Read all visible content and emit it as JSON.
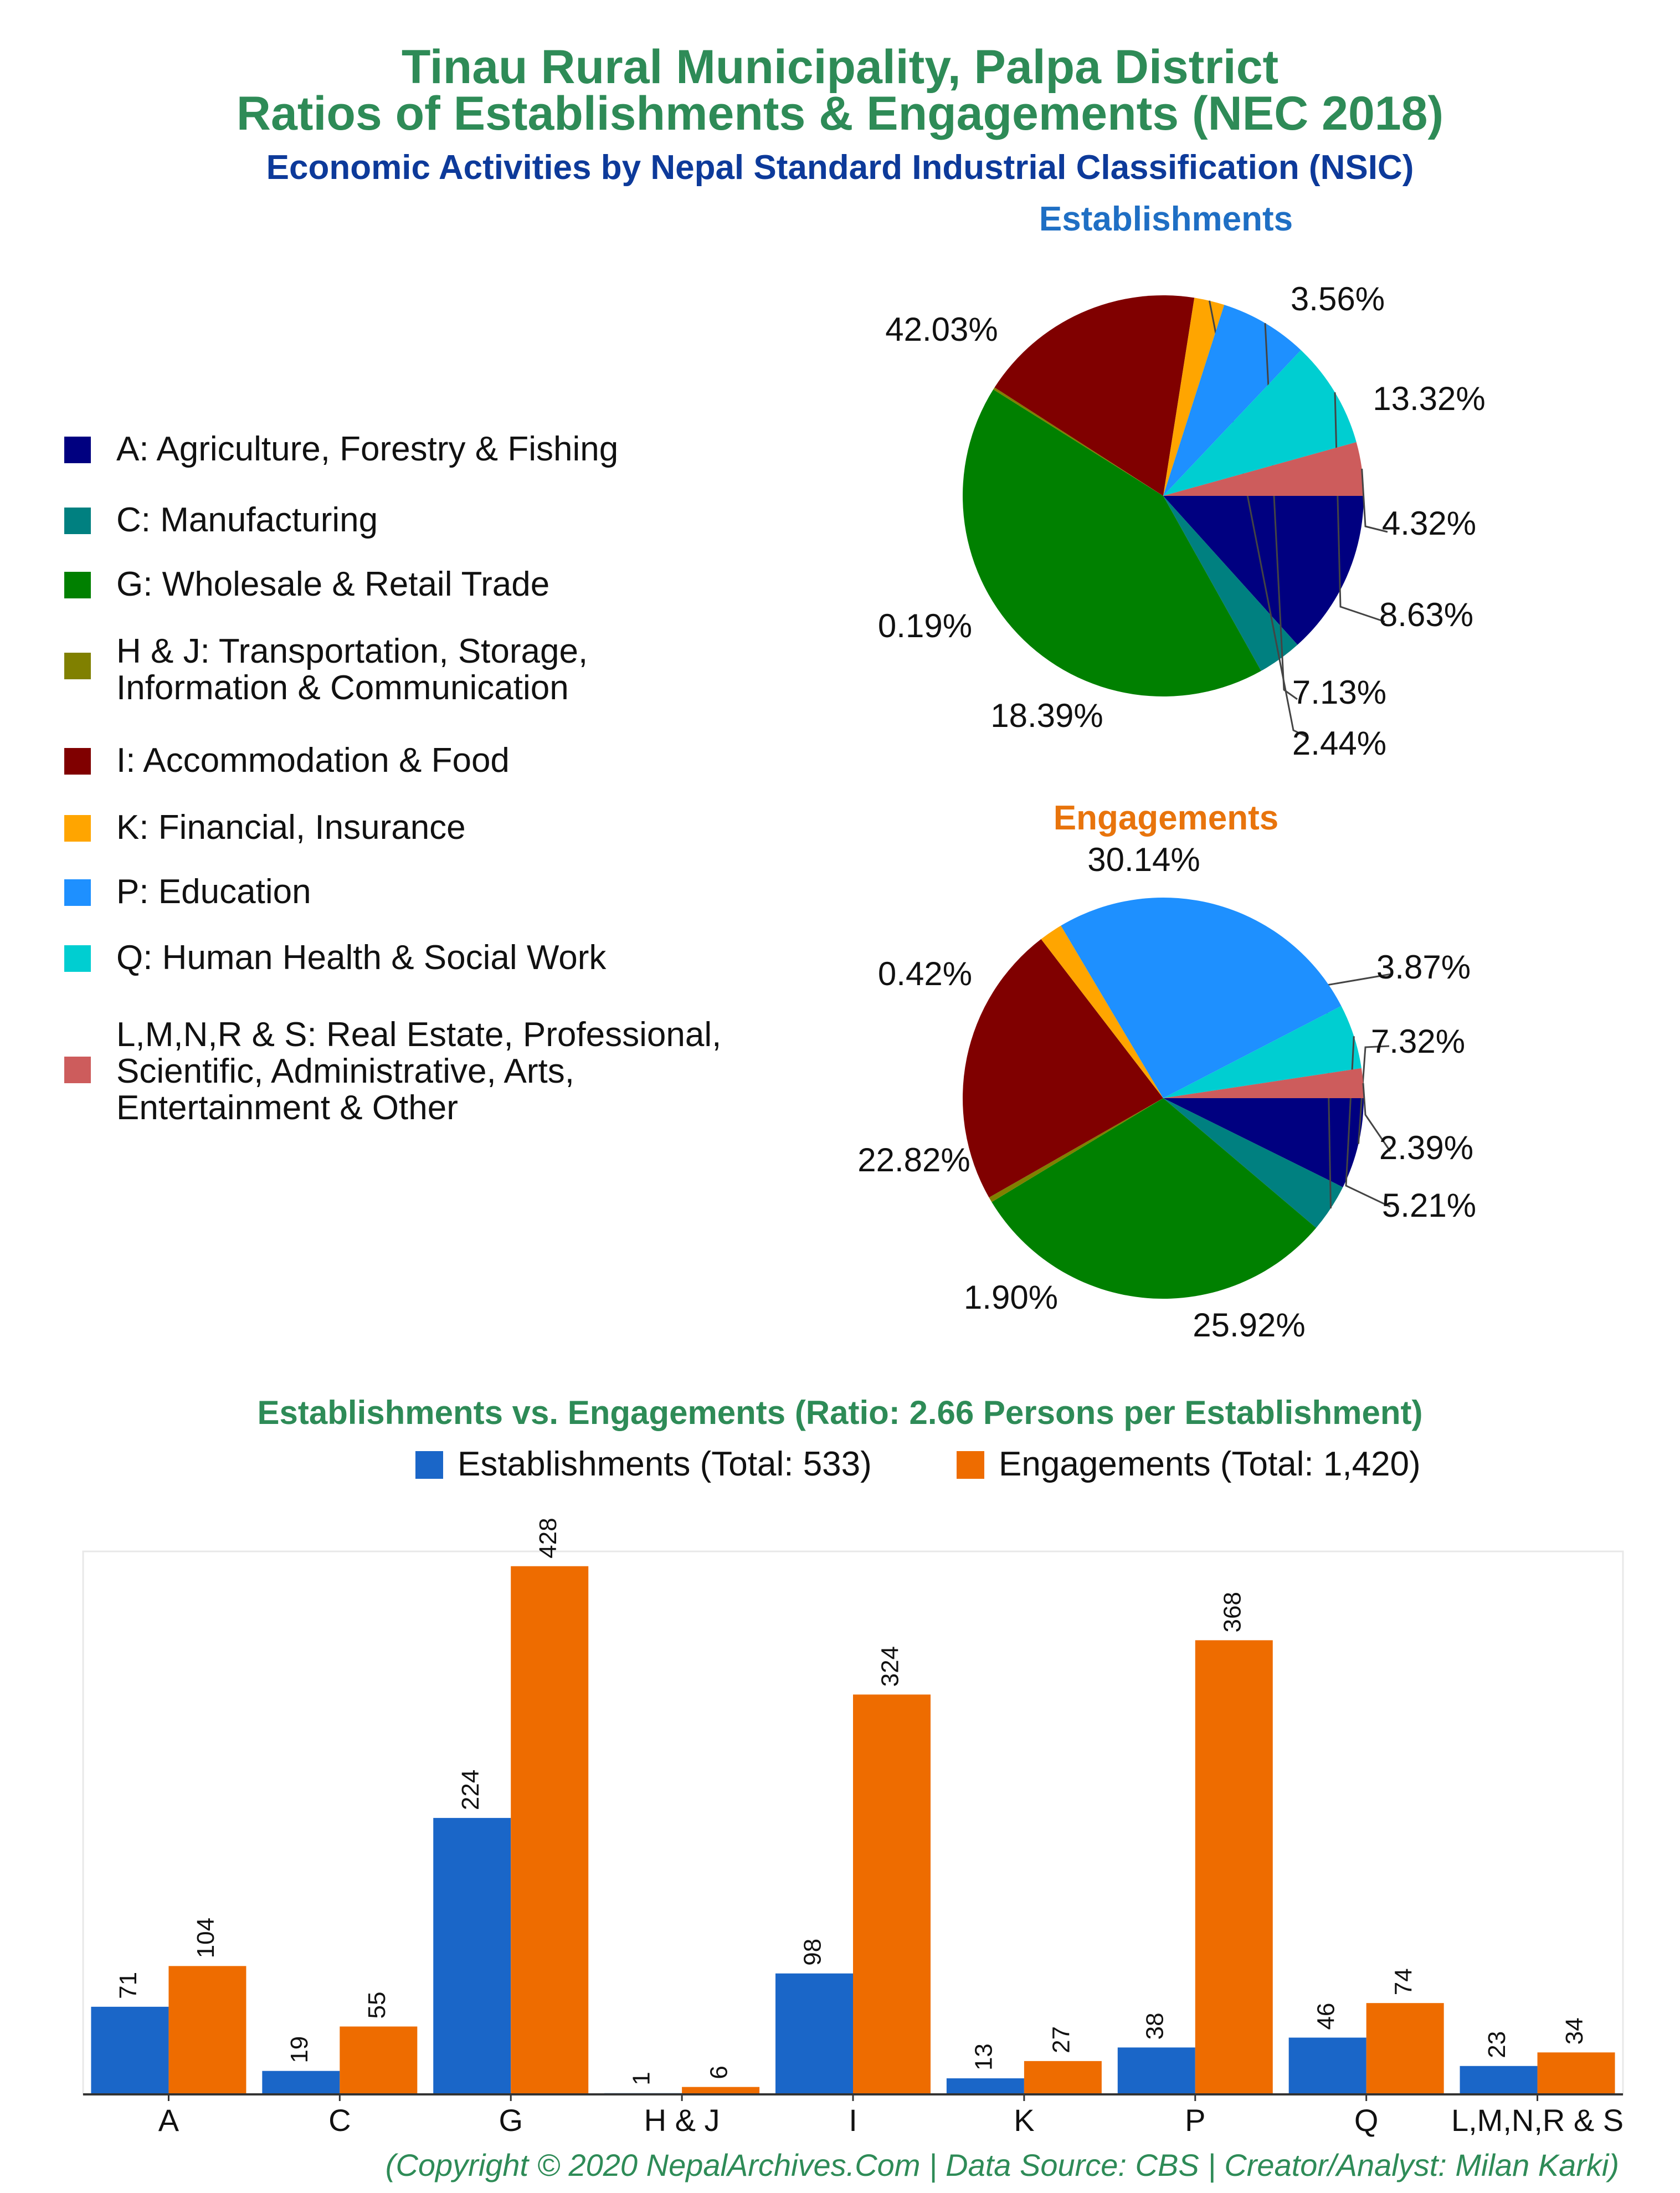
{
  "header": {
    "title_line1": "Tinau Rural Municipality, Palpa District",
    "title_line2": "Ratios of Establishments & Engagements (NEC 2018)",
    "subtitle": "Economic Activities by Nepal Standard Industrial Classification (NSIC)"
  },
  "colors": {
    "title": "#2e8b57",
    "subtitle": "#0d3a9a",
    "establishments_title": "#1f6fc4",
    "engagements_title": "#e8740c",
    "bar_establishments": "#1a66c8",
    "bar_engagements": "#ee6c00"
  },
  "legend": [
    {
      "label": "A: Agriculture, Forestry & Fishing",
      "color": "#000080"
    },
    {
      "label": "C: Manufacturing",
      "color": "#008080"
    },
    {
      "label": "G: Wholesale & Retail Trade",
      "color": "#008000"
    },
    {
      "label": "H & J: Transportation, Storage,",
      "label2": "Information & Communication",
      "color": "#808000"
    },
    {
      "label": "I: Accommodation & Food",
      "color": "#800000"
    },
    {
      "label": "K: Financial, Insurance",
      "color": "#ffa500"
    },
    {
      "label": "P: Education",
      "color": "#1e90ff"
    },
    {
      "label": "Q: Human Health & Social Work",
      "color": "#00ced1"
    },
    {
      "label": "L,M,N,R & S: Real Estate, Professional,",
      "label2": "Scientific, Administrative, Arts,",
      "label3": "Entertainment & Other",
      "color": "#cd5c5c"
    }
  ],
  "chart_data": [
    {
      "type": "pie",
      "title": "Establishments",
      "categories": [
        "A",
        "C",
        "G",
        "H & J",
        "I",
        "K",
        "P",
        "Q",
        "L,M,N,R & S"
      ],
      "values": [
        13.32,
        3.56,
        42.03,
        0.19,
        18.39,
        2.44,
        7.13,
        8.63,
        4.32
      ],
      "labels": [
        "13.32%",
        "3.56%",
        "42.03%",
        "0.19%",
        "18.39%",
        "2.44%",
        "7.13%",
        "8.63%",
        "4.32%"
      ]
    },
    {
      "type": "pie",
      "title": "Engagements",
      "categories": [
        "A",
        "C",
        "G",
        "H & J",
        "I",
        "K",
        "P",
        "Q",
        "L,M,N,R & S"
      ],
      "values": [
        7.32,
        3.87,
        30.14,
        0.42,
        22.82,
        1.9,
        25.92,
        5.21,
        2.39
      ],
      "labels": [
        "7.32%",
        "3.87%",
        "30.14%",
        "0.42%",
        "22.82%",
        "1.90%",
        "25.92%",
        "5.21%",
        "2.39%"
      ]
    },
    {
      "type": "bar",
      "title": "Establishments vs. Engagements (Ratio: 2.66 Persons per Establishment)",
      "categories": [
        "A",
        "C",
        "G",
        "H & J",
        "I",
        "K",
        "P",
        "Q",
        "L,M,N,R & S"
      ],
      "series": [
        {
          "name": "Establishments (Total: 533)",
          "values": [
            71,
            19,
            224,
            1,
            98,
            13,
            38,
            46,
            23
          ]
        },
        {
          "name": "Engagements (Total: 1,420)",
          "values": [
            104,
            55,
            428,
            6,
            324,
            27,
            368,
            74,
            34
          ]
        }
      ],
      "ylim": [
        0,
        440
      ],
      "grid": false,
      "legend_position": "top"
    }
  ],
  "footer": "(Copyright © 2020 NepalArchives.Com | Data Source: CBS | Creator/Analyst: Milan Karki)"
}
